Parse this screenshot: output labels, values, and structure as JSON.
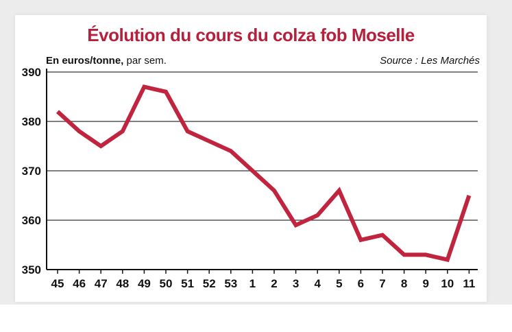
{
  "chart_data": {
    "type": "line",
    "title": "Évolution du cours du colza fob Moselle",
    "unit_label_bold": "En euros/tonne,",
    "unit_label_rest": " par sem.",
    "source": "Source : Les Marchés",
    "xlabel": "",
    "ylabel": "",
    "categories": [
      "45",
      "46",
      "47",
      "48",
      "49",
      "50",
      "51",
      "52",
      "53",
      "1",
      "2",
      "3",
      "4",
      "5",
      "6",
      "7",
      "8",
      "9",
      "10",
      "11"
    ],
    "series": [
      {
        "values": [
          382,
          378,
          375,
          378,
          387,
          386,
          378,
          376,
          374,
          370,
          366,
          359,
          361,
          366,
          356,
          357,
          353,
          353,
          352,
          365
        ]
      }
    ],
    "ylim": [
      350,
      390
    ],
    "yticks": [
      350,
      360,
      370,
      380,
      390
    ],
    "grid": true,
    "line_color": "#c0243f"
  }
}
